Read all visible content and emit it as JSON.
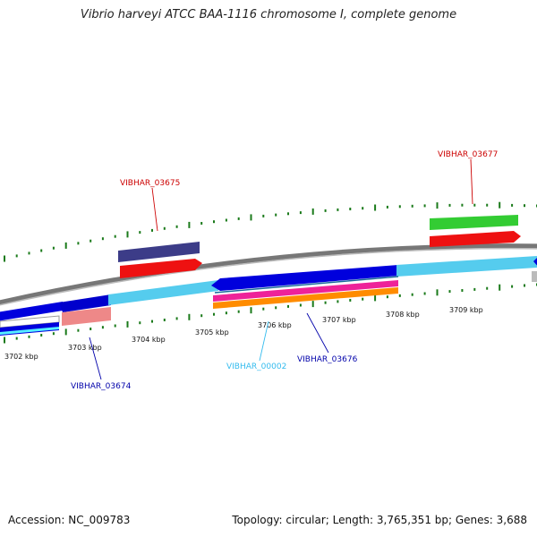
{
  "title": "Vibrio harveyi ATCC BAA-1116 chromosome I, complete genome",
  "footer": {
    "accession": "Accession: NC_009783",
    "summary": "Topology: circular; Length: 3,765,351 bp; Genes: 3,688"
  },
  "colors": {
    "backbone": "#888888",
    "cds_forward": "#55ccee",
    "cds_strong": "#0000dd",
    "gene_red": "#ee1111",
    "gene_green": "#33cc33",
    "gene_purple": "#3c3c88",
    "gene_pink": "#ee2299",
    "gene_orange": "#ff8c00",
    "gene_salmon": "#ee8888",
    "tick_green": "#1a7a1a",
    "label_red": "#cc0000",
    "label_blue": "#0000aa",
    "label_cyan": "#33bbee"
  },
  "scale_labels": [
    "3702 kbp",
    "3703 kbp",
    "3704 kbp",
    "3705 kbp",
    "3706 kbp",
    "3707 kbp",
    "3708 kbp",
    "3709 kbp"
  ],
  "gene_labels": [
    {
      "id": "vibhar-03675",
      "text": "VIBHAR_03675",
      "color": "#cc0000"
    },
    {
      "id": "vibhar-03677",
      "text": "VIBHAR_03677",
      "color": "#cc0000"
    },
    {
      "id": "vibhar-03674",
      "text": "VIBHAR_03674",
      "color": "#0000aa"
    },
    {
      "id": "vibhar-00002",
      "text": "VIBHAR_00002",
      "color": "#33bbee"
    },
    {
      "id": "vibhar-03676",
      "text": "VIBHAR_03676",
      "color": "#0000aa"
    }
  ]
}
